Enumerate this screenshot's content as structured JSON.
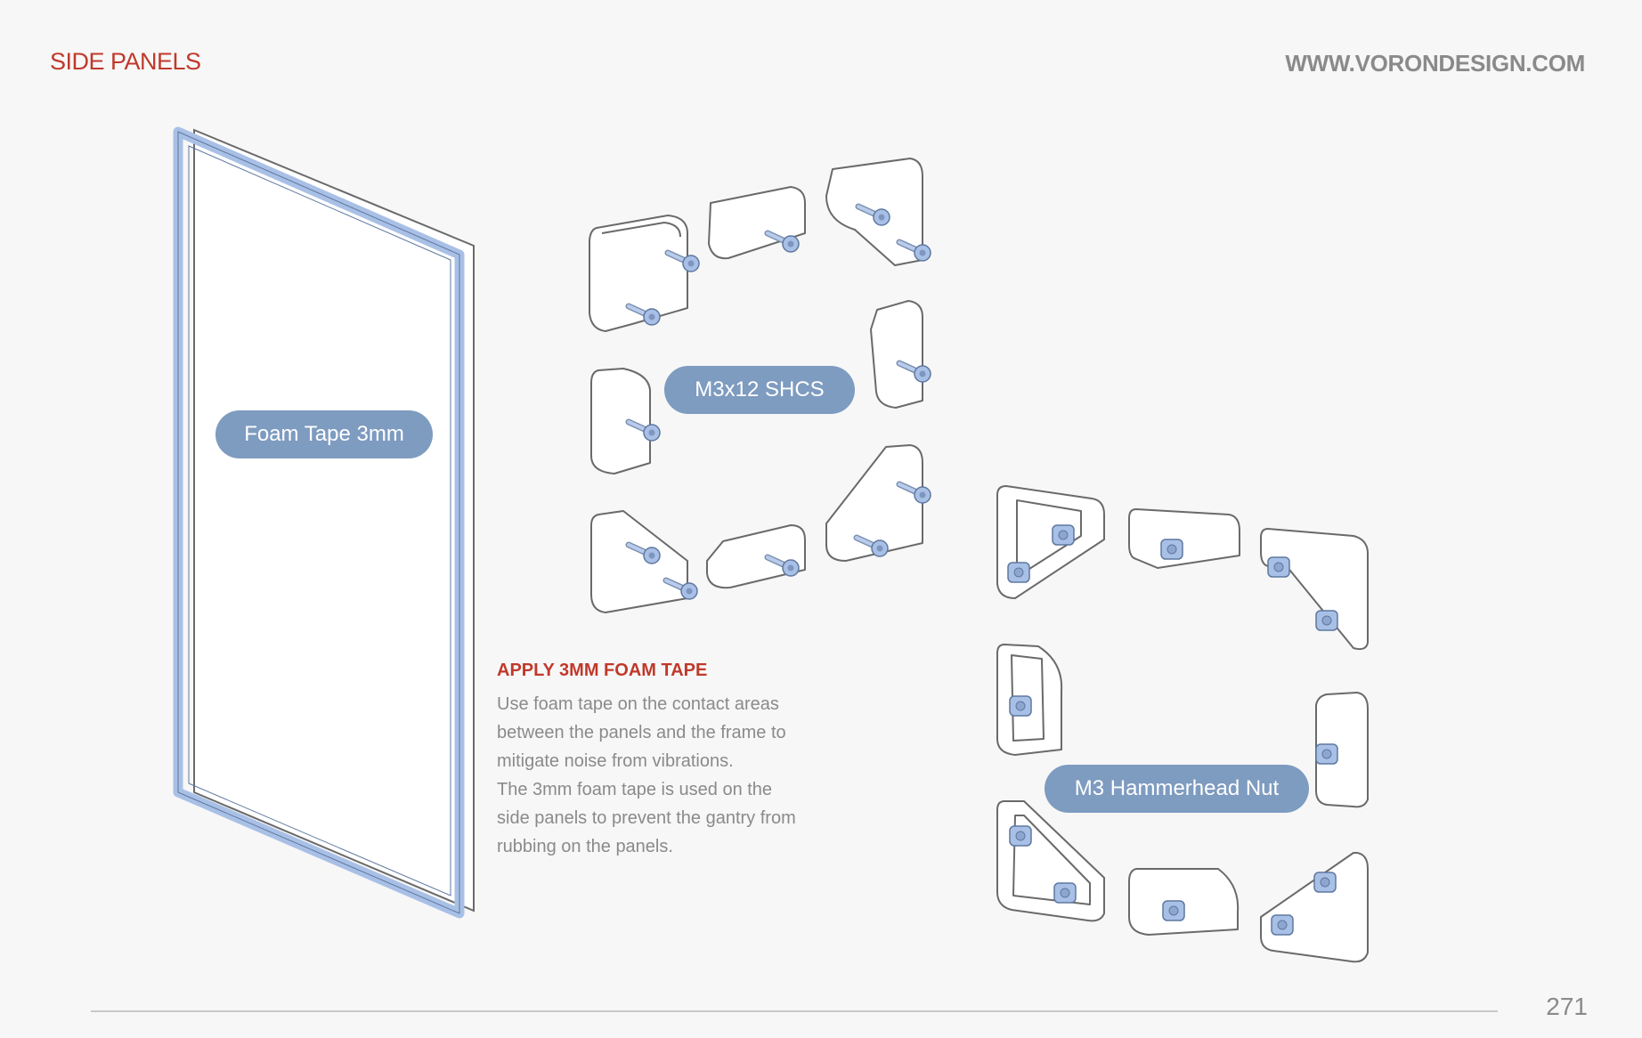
{
  "header": {
    "section_title": "SIDE PANELS",
    "website": "WWW.VORONDESIGN.COM"
  },
  "labels": {
    "foam_tape": "Foam Tape 3mm",
    "screw": "M3x12 SHCS",
    "nut": "M3 Hammerhead Nut"
  },
  "instructions": {
    "title": "APPLY 3MM FOAM TAPE",
    "body": "Use foam tape on the contact areas\nbetween the panels and the frame to\nmitigate noise from vibrations.\nThe 3mm foam tape is used on the\nside panels to prevent the gantry from\nrubbing on the panels."
  },
  "footer": {
    "page_number": "271"
  },
  "colors": {
    "accent_red": "#c0392b",
    "label_blue": "#7e9bc0",
    "part_blue": "#a9c0e6",
    "text_gray": "#8a8a8a"
  }
}
